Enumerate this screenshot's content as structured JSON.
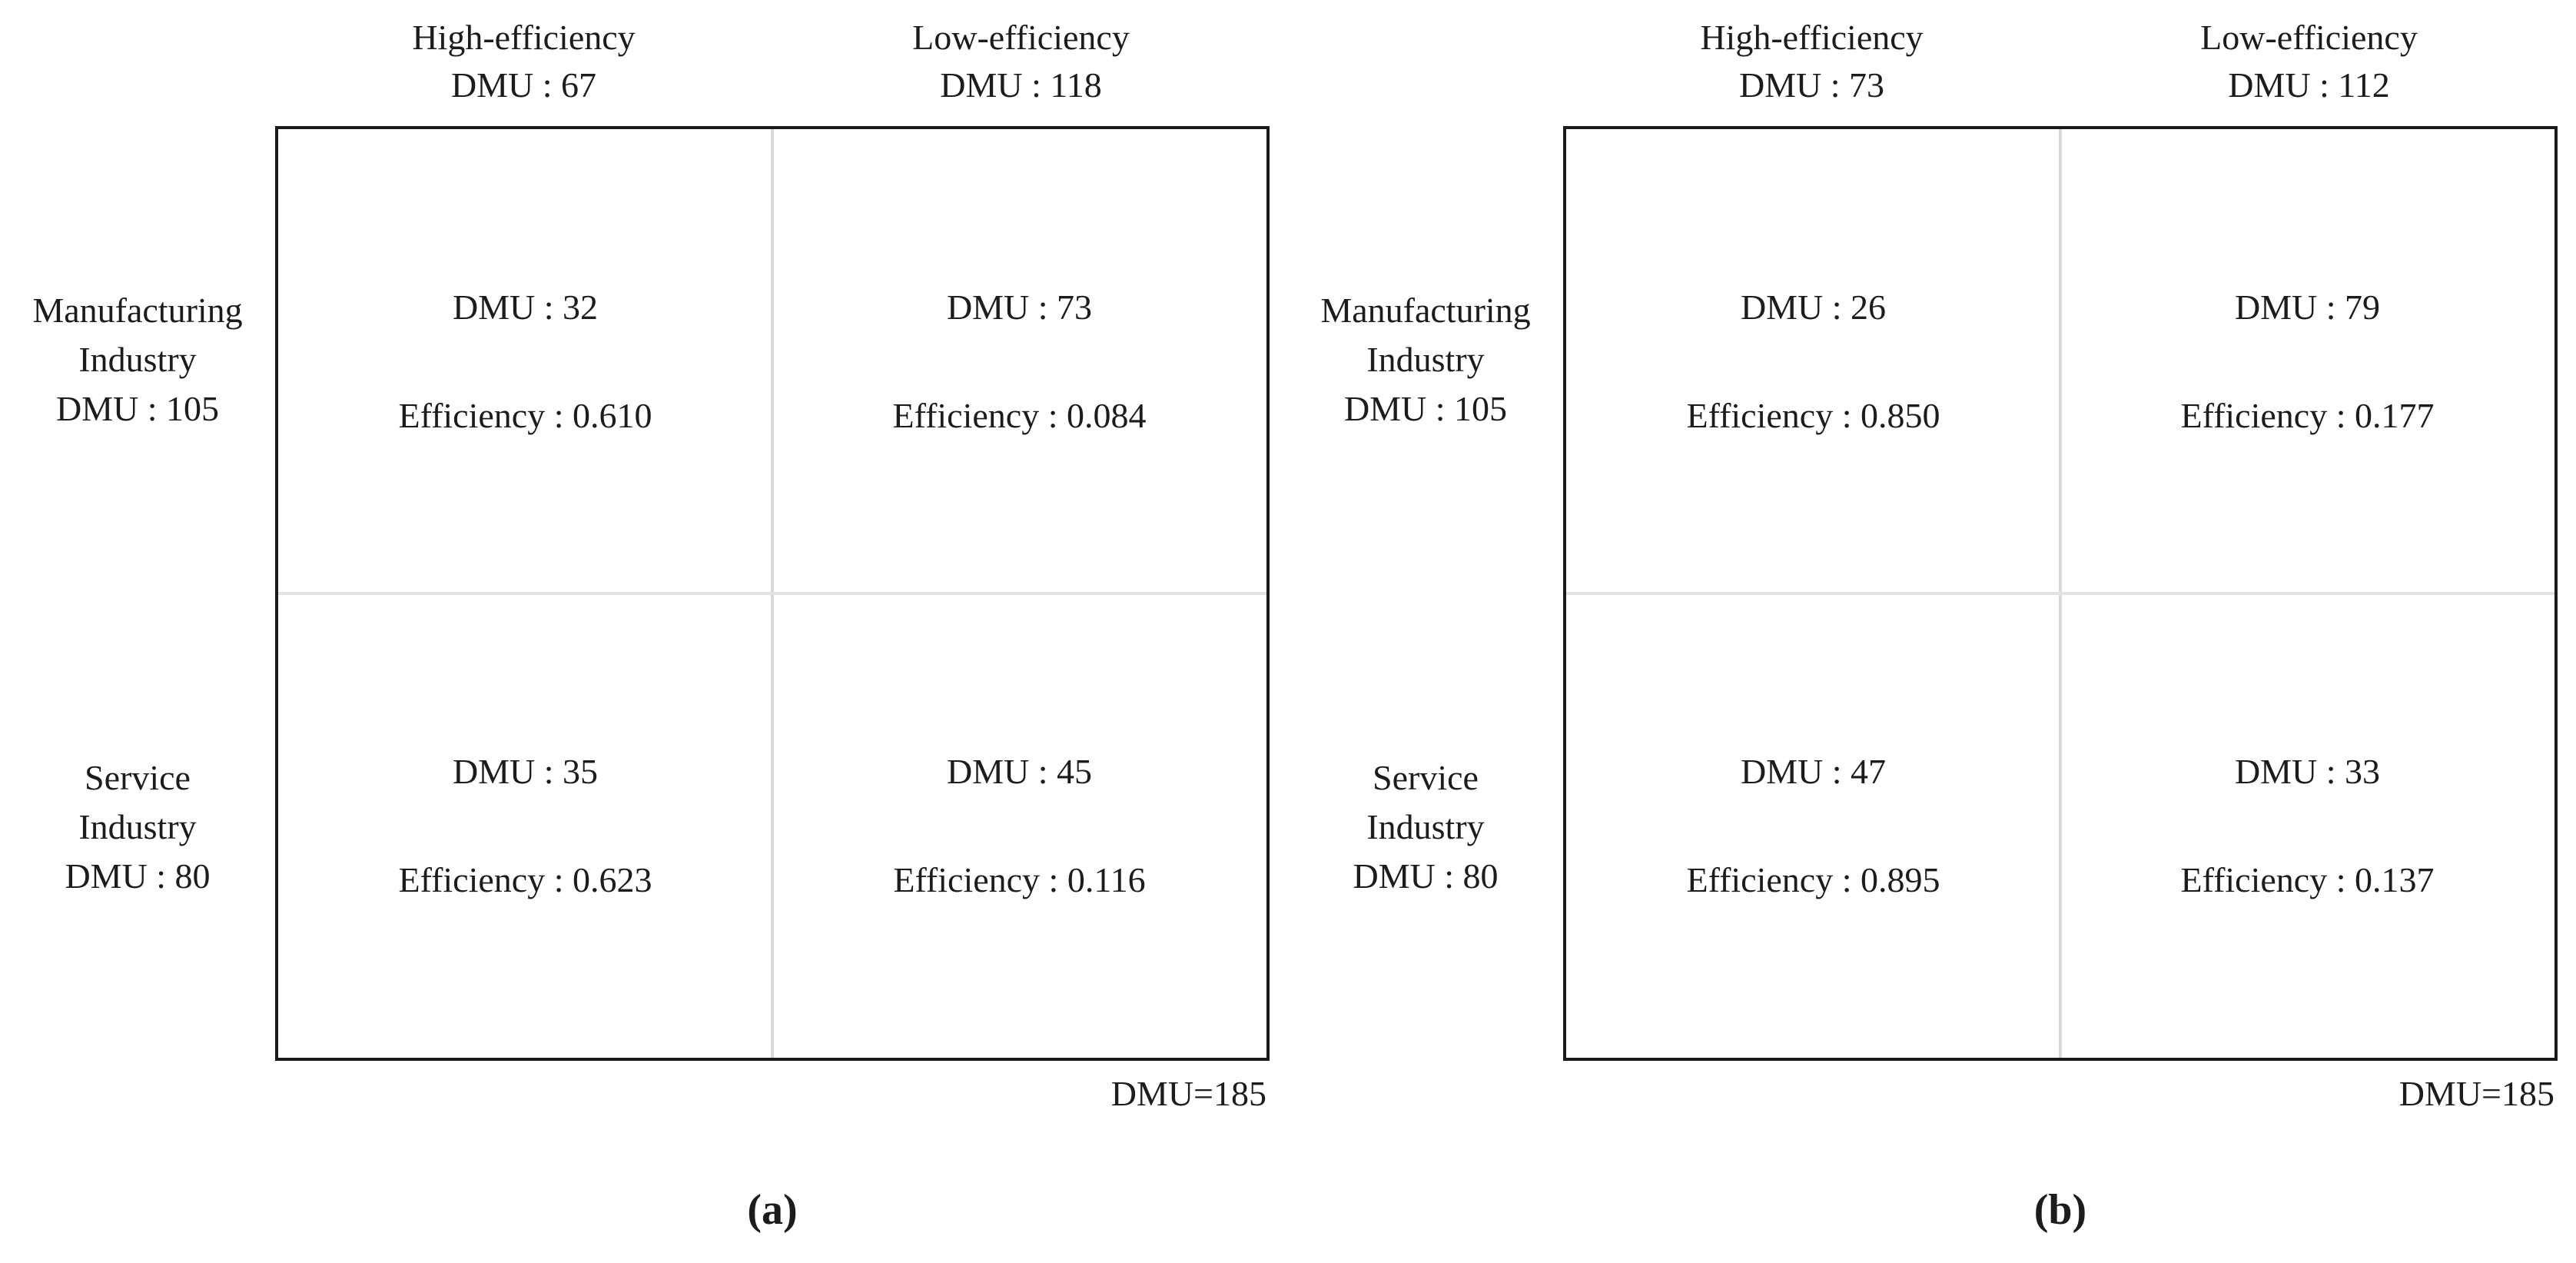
{
  "panels": [
    {
      "caption": "(a)",
      "total": "DMU=185",
      "column_headers": [
        {
          "title": "High-efficiency",
          "dmu": "DMU : 67"
        },
        {
          "title": "Low-efficiency",
          "dmu": "DMU : 118"
        }
      ],
      "row_headers": [
        {
          "lines": [
            "Manufacturing",
            "Industry",
            "DMU : 105"
          ]
        },
        {
          "lines": [
            "Service",
            "Industry",
            "DMU : 80"
          ]
        }
      ],
      "cells": [
        [
          {
            "dmu": "DMU : 32",
            "efficiency": "Efficiency : 0.610"
          },
          {
            "dmu": "DMU : 73",
            "efficiency": "Efficiency : 0.084"
          }
        ],
        [
          {
            "dmu": "DMU : 35",
            "efficiency": "Efficiency : 0.623"
          },
          {
            "dmu": "DMU : 45",
            "efficiency": "Efficiency : 0.116"
          }
        ]
      ]
    },
    {
      "caption": "(b)",
      "total": "DMU=185",
      "column_headers": [
        {
          "title": "High-efficiency",
          "dmu": "DMU : 73"
        },
        {
          "title": "Low-efficiency",
          "dmu": "DMU : 112"
        }
      ],
      "row_headers": [
        {
          "lines": [
            "Manufacturing",
            "Industry",
            "DMU : 105"
          ]
        },
        {
          "lines": [
            "Service",
            "Industry",
            "DMU : 80"
          ]
        }
      ],
      "cells": [
        [
          {
            "dmu": "DMU : 26",
            "efficiency": "Efficiency : 0.850"
          },
          {
            "dmu": "DMU : 79",
            "efficiency": "Efficiency : 0.177"
          }
        ],
        [
          {
            "dmu": "DMU : 47",
            "efficiency": "Efficiency : 0.895"
          },
          {
            "dmu": "DMU : 33",
            "efficiency": "Efficiency : 0.137"
          }
        ]
      ]
    }
  ],
  "chart_data": [
    {
      "type": "table",
      "title": "(a)",
      "row_categories": [
        "Manufacturing Industry",
        "Service Industry"
      ],
      "row_dmu_totals": [
        105,
        80
      ],
      "column_categories": [
        "High-efficiency",
        "Low-efficiency"
      ],
      "column_dmu_totals": [
        67,
        118
      ],
      "cells": [
        {
          "row": "Manufacturing Industry",
          "column": "High-efficiency",
          "dmu": 32,
          "efficiency": 0.61
        },
        {
          "row": "Manufacturing Industry",
          "column": "Low-efficiency",
          "dmu": 73,
          "efficiency": 0.084
        },
        {
          "row": "Service Industry",
          "column": "High-efficiency",
          "dmu": 35,
          "efficiency": 0.623
        },
        {
          "row": "Service Industry",
          "column": "Low-efficiency",
          "dmu": 45,
          "efficiency": 0.116
        }
      ],
      "total_dmu": 185
    },
    {
      "type": "table",
      "title": "(b)",
      "row_categories": [
        "Manufacturing Industry",
        "Service Industry"
      ],
      "row_dmu_totals": [
        105,
        80
      ],
      "column_categories": [
        "High-efficiency",
        "Low-efficiency"
      ],
      "column_dmu_totals": [
        73,
        112
      ],
      "cells": [
        {
          "row": "Manufacturing Industry",
          "column": "High-efficiency",
          "dmu": 26,
          "efficiency": 0.85
        },
        {
          "row": "Manufacturing Industry",
          "column": "Low-efficiency",
          "dmu": 79,
          "efficiency": 0.177
        },
        {
          "row": "Service Industry",
          "column": "High-efficiency",
          "dmu": 47,
          "efficiency": 0.895
        },
        {
          "row": "Service Industry",
          "column": "Low-efficiency",
          "dmu": 33,
          "efficiency": 0.137
        }
      ],
      "total_dmu": 185
    }
  ]
}
